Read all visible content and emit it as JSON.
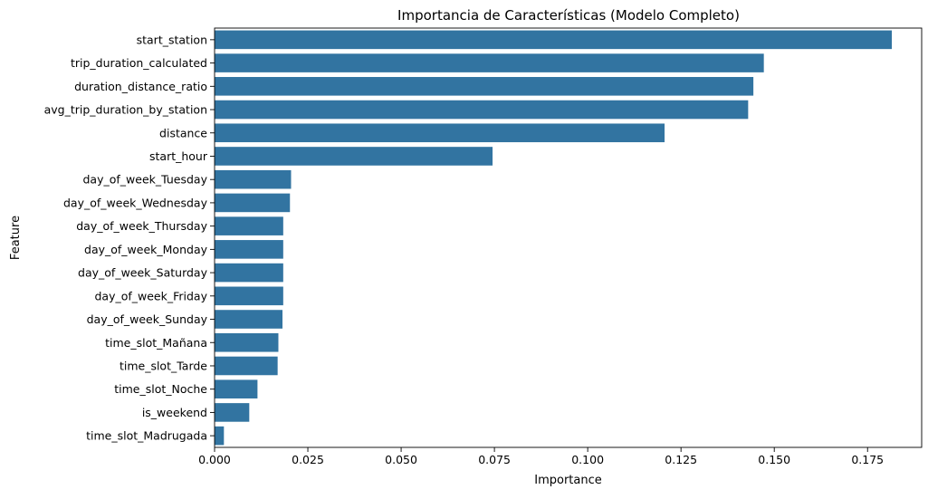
{
  "chart_data": {
    "type": "bar",
    "orientation": "horizontal",
    "title": "Importancia de Características (Modelo Completo)",
    "xlabel": "Importance",
    "ylabel": "Feature",
    "xlim": [
      0,
      0.1895
    ],
    "xticks": [
      0.0,
      0.025,
      0.05,
      0.075,
      0.1,
      0.125,
      0.15,
      0.175
    ],
    "xtick_labels": [
      "0.000",
      "0.025",
      "0.050",
      "0.075",
      "0.100",
      "0.125",
      "0.150",
      "0.175"
    ],
    "grid": false,
    "bar_color": "#3274a1",
    "categories": [
      "start_station",
      "trip_duration_calculated",
      "duration_distance_ratio",
      "avg_trip_duration_by_station",
      "distance",
      "start_hour",
      "day_of_week_Tuesday",
      "day_of_week_Wednesday",
      "day_of_week_Thursday",
      "day_of_week_Monday",
      "day_of_week_Saturday",
      "day_of_week_Friday",
      "day_of_week_Sunday",
      "time_slot_Mañana",
      "time_slot_Tarde",
      "time_slot_Noche",
      "is_weekend",
      "time_slot_Madrugada"
    ],
    "values": [
      0.1815,
      0.1472,
      0.1444,
      0.143,
      0.1206,
      0.0745,
      0.0205,
      0.0202,
      0.0184,
      0.0184,
      0.0184,
      0.0184,
      0.0182,
      0.0171,
      0.0169,
      0.0115,
      0.0093,
      0.0025
    ]
  }
}
